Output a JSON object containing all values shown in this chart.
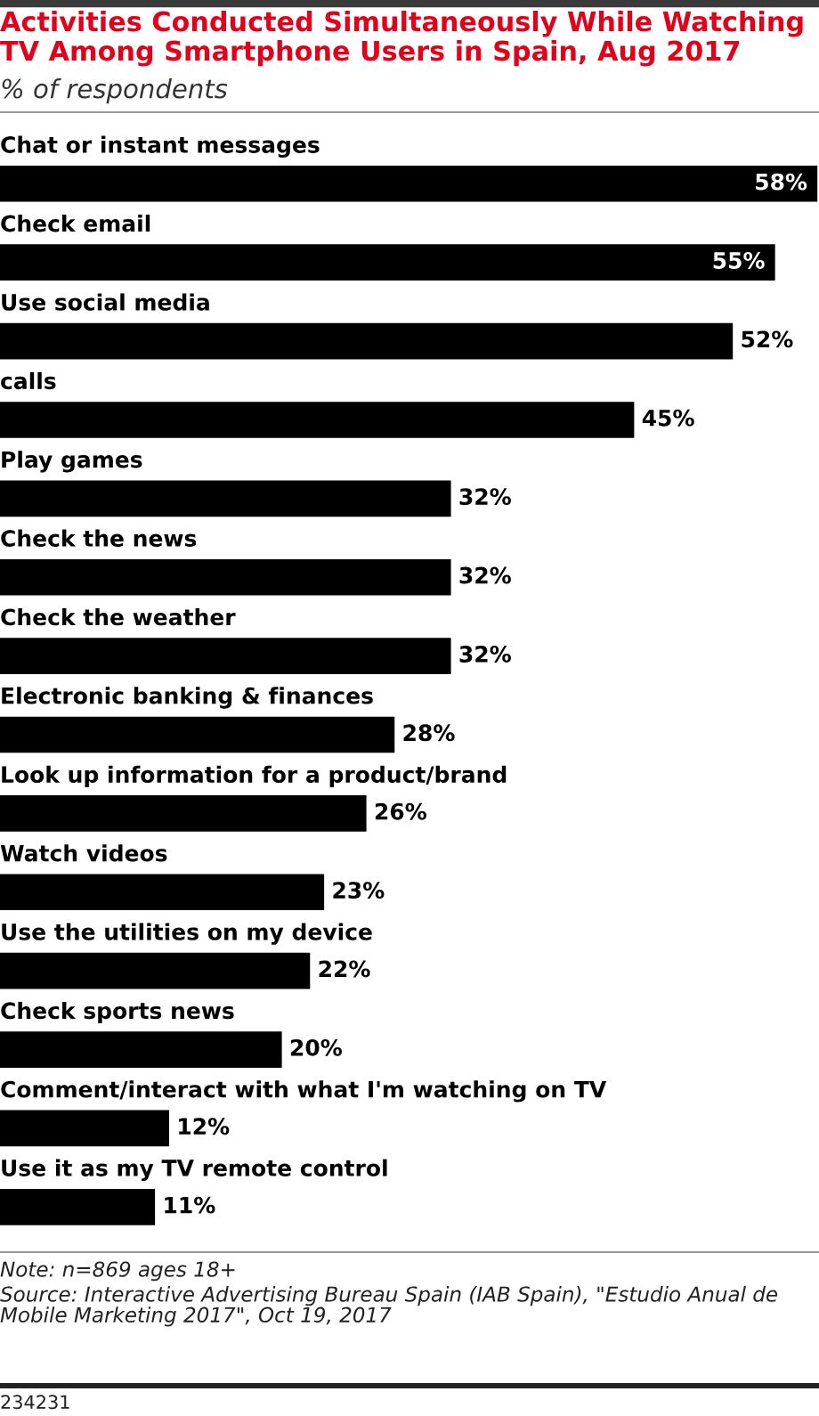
{
  "chart_data": {
    "type": "bar",
    "orientation": "horizontal",
    "title": "Activities Conducted Simultaneously While Watching TV Among Smartphone Users in Spain, Aug 2017",
    "subtitle": "% of respondents",
    "categories": [
      "Chat or instant messages",
      "Check email",
      "Use social media",
      "calls",
      "Play games",
      "Check the news",
      "Check the weather",
      "Electronic banking & finances",
      "Look up information for a product/brand",
      "Watch videos",
      "Use the utilities on my device",
      "Check sports news",
      "Comment/interact with what I'm watching on TV",
      "Use it as my TV remote control"
    ],
    "values": [
      58,
      55,
      52,
      45,
      32,
      32,
      32,
      28,
      26,
      23,
      22,
      20,
      12,
      11
    ],
    "value_labels": [
      "58%",
      "55%",
      "52%",
      "45%",
      "32%",
      "32%",
      "32%",
      "28%",
      "26%",
      "23%",
      "22%",
      "20%",
      "12%",
      "11%"
    ],
    "color": "#000000",
    "tick_labels": "y",
    "annotations": [
      "Note: n=869 ages 18+",
      "Source: Interactive Advertising Bureau Spain (IAB Spain), \"Estudio Anual de Mobile Marketing 2017\", Oct 19, 2017",
      "234231"
    ]
  }
}
